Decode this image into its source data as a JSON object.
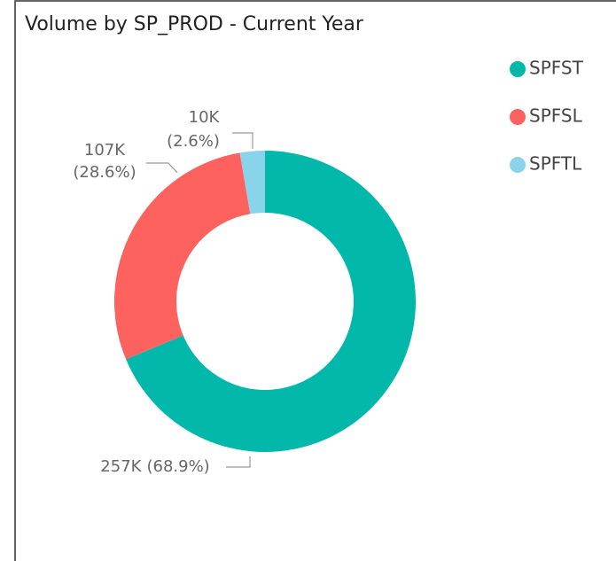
{
  "chart_data": {
    "type": "donut",
    "title": "Volume by SP_PROD - Current Year",
    "categories": [
      "SPFST",
      "SPFSL",
      "SPFTL"
    ],
    "values": [
      257000,
      107000,
      10000
    ],
    "value_labels": [
      "257K",
      "107K",
      "10K"
    ],
    "percentages": [
      68.9,
      28.6,
      2.6
    ],
    "percent_labels": [
      "(68.9%)",
      "(28.6%)",
      "(2.6%)"
    ],
    "colors": [
      "#01B8AA",
      "#FD625E",
      "#8AD4EB"
    ],
    "legend": "top-right"
  }
}
